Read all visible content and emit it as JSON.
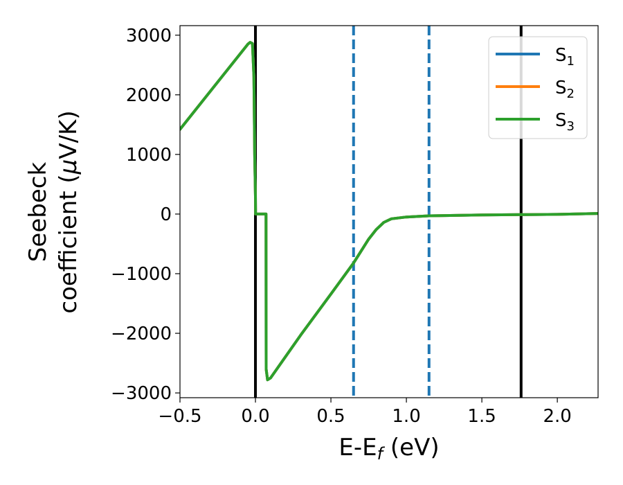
{
  "chart_data": {
    "type": "line",
    "xlabel_main": "E-E",
    "xlabel_sub": "f",
    "xlabel_unit": " (eV)",
    "ylabel_line1": "Seebeck",
    "ylabel_line2_text": "coefficient  (",
    "ylabel_line2_mu": "μ",
    "ylabel_line2_unit": "V/K)",
    "xlim": [
      -0.5,
      2.27
    ],
    "ylim": [
      -3080,
      3160
    ],
    "x_ticks": [
      -0.5,
      0.0,
      0.5,
      1.0,
      1.5,
      2.0
    ],
    "x_tick_labels": [
      "−0.5",
      "0.0",
      "0.5",
      "1.0",
      "1.5",
      "2.0"
    ],
    "y_ticks": [
      -3000,
      -2000,
      -1000,
      0,
      1000,
      2000,
      3000
    ],
    "y_tick_labels": [
      "−3000",
      "−2000",
      "−1000",
      "0",
      "1000",
      "2000",
      "3000"
    ],
    "grid": false,
    "legend_placement": "upper-right",
    "series": [
      {
        "name": "S",
        "sub": "1",
        "color": "#1f77b4",
        "x": [
          -0.5,
          -0.05,
          -0.035,
          -0.02,
          -0.01,
          -0.005,
          0.0,
          0.001,
          0.07,
          0.071,
          0.08,
          0.1,
          0.3,
          0.5,
          0.65,
          0.75,
          0.8,
          0.85,
          0.9,
          1.0,
          1.15,
          1.5,
          1.76,
          2.0,
          2.27
        ],
        "y": [
          1420,
          2850,
          2880,
          2860,
          2300,
          1000,
          300,
          0,
          0,
          -2600,
          -2780,
          -2750,
          -2030,
          -1340,
          -820,
          -420,
          -260,
          -140,
          -80,
          -50,
          -30,
          -15,
          -10,
          -5,
          10
        ]
      },
      {
        "name": "S",
        "sub": "2",
        "color": "#ff7f0e",
        "x": [
          -0.5,
          -0.05,
          -0.035,
          -0.02,
          -0.01,
          -0.005,
          0.0,
          0.001,
          0.07,
          0.071,
          0.08,
          0.1,
          0.3,
          0.5,
          0.65,
          0.75,
          0.8,
          0.85,
          0.9,
          1.0,
          1.15,
          1.5,
          1.76,
          2.0,
          2.27
        ],
        "y": [
          1420,
          2850,
          2880,
          2860,
          2300,
          1000,
          300,
          0,
          0,
          -2600,
          -2780,
          -2750,
          -2030,
          -1340,
          -820,
          -420,
          -260,
          -140,
          -80,
          -50,
          -30,
          -15,
          -10,
          -5,
          10
        ]
      },
      {
        "name": "S",
        "sub": "3",
        "color": "#2ca02c",
        "x": [
          -0.5,
          -0.05,
          -0.035,
          -0.02,
          -0.01,
          -0.005,
          0.0,
          0.001,
          0.07,
          0.071,
          0.08,
          0.1,
          0.3,
          0.5,
          0.65,
          0.75,
          0.8,
          0.85,
          0.9,
          1.0,
          1.15,
          1.5,
          1.76,
          2.0,
          2.27
        ],
        "y": [
          1420,
          2850,
          2880,
          2860,
          2300,
          1000,
          300,
          0,
          0,
          -2600,
          -2780,
          -2750,
          -2030,
          -1340,
          -820,
          -420,
          -260,
          -140,
          -80,
          -50,
          -30,
          -15,
          -10,
          -5,
          10
        ]
      }
    ],
    "vertical_lines": [
      {
        "x": 0.0,
        "color": "#000000",
        "style": "solid"
      },
      {
        "x": 1.76,
        "color": "#000000",
        "style": "solid"
      },
      {
        "x": 0.65,
        "color": "#1f77b4",
        "style": "dashed"
      },
      {
        "x": 1.15,
        "color": "#1f77b4",
        "style": "dashed"
      }
    ]
  }
}
